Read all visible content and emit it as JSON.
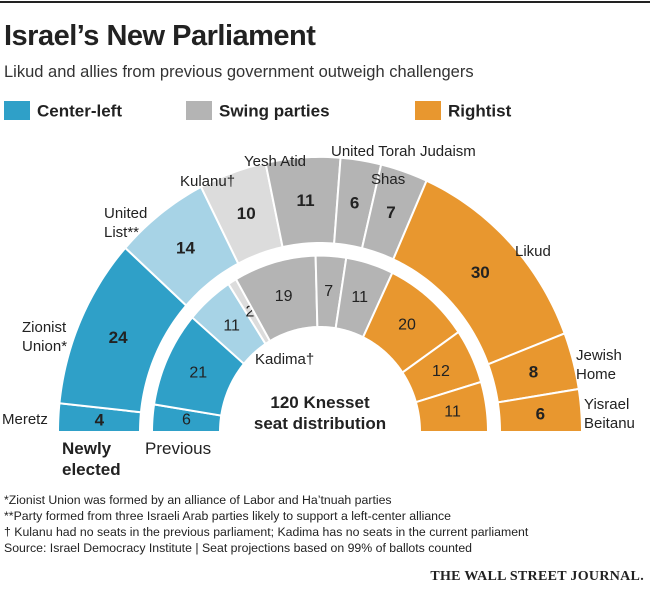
{
  "chart_data": {
    "type": "parliament",
    "title": "Israel’s New Parliament",
    "subtitle": "Likud and allies from previous government outweigh challengers",
    "legend": [
      {
        "name": "Center-left",
        "color": "#2fa0c8"
      },
      {
        "name": "Swing parties",
        "color": "#b4b4b4"
      },
      {
        "name": "Rightist",
        "color": "#e8972f"
      }
    ],
    "rings": [
      {
        "name": "Newly\nelected",
        "segments": [
          {
            "name": "Meretz",
            "value": 4,
            "color": "#2fa0c8"
          },
          {
            "name": "Zionist\nUnion*",
            "value": 24,
            "color": "#2fa0c8"
          },
          {
            "name": "United\nList**",
            "value": 14,
            "color": "#a7d3e6"
          },
          {
            "name": "Kulanu†",
            "value": 10,
            "color": "#dcdcdc"
          },
          {
            "name": "Yesh Atid",
            "value": 11,
            "color": "#b4b4b4"
          },
          {
            "name": "United Torah Judaism",
            "value": 6,
            "color": "#b4b4b4"
          },
          {
            "name": "Shas",
            "value": 7,
            "color": "#b4b4b4"
          },
          {
            "name": "Likud",
            "value": 30,
            "color": "#e8972f"
          },
          {
            "name": "Jewish\nHome",
            "value": 8,
            "color": "#e8972f"
          },
          {
            "name": "Yisrael\nBeitanu",
            "value": 6,
            "color": "#e8972f"
          }
        ]
      },
      {
        "name": "Previous",
        "segments": [
          {
            "value": 6,
            "color": "#2fa0c8"
          },
          {
            "value": 21,
            "color": "#2fa0c8"
          },
          {
            "value": 11,
            "color": "#a7d3e6"
          },
          {
            "name": "Kadima†",
            "value": 2,
            "color": "#dcdcdc"
          },
          {
            "value": 19,
            "color": "#b4b4b4"
          },
          {
            "value": 7,
            "color": "#b4b4b4"
          },
          {
            "value": 11,
            "color": "#b4b4b4"
          },
          {
            "value": 20,
            "color": "#e8972f"
          },
          {
            "value": 12,
            "color": "#e8972f"
          },
          {
            "value": 11,
            "color": "#e8972f"
          }
        ]
      }
    ],
    "center_label": "120 Knesset\nseat distribution",
    "notes": [
      "*Zionist Union was formed by an alliance of Labor and Ha’tnuah parties",
      "**Party formed from three Israeli Arab parties likely to support a left-center alliance",
      "† Kulanu had no seats in the previous parliament; Kadima has no seats in the current parliament",
      "Source: Israel Democracy Institute | Seat projections based on 99% of ballots counted"
    ],
    "credit": "THE WALL STREET JOURNAL."
  }
}
